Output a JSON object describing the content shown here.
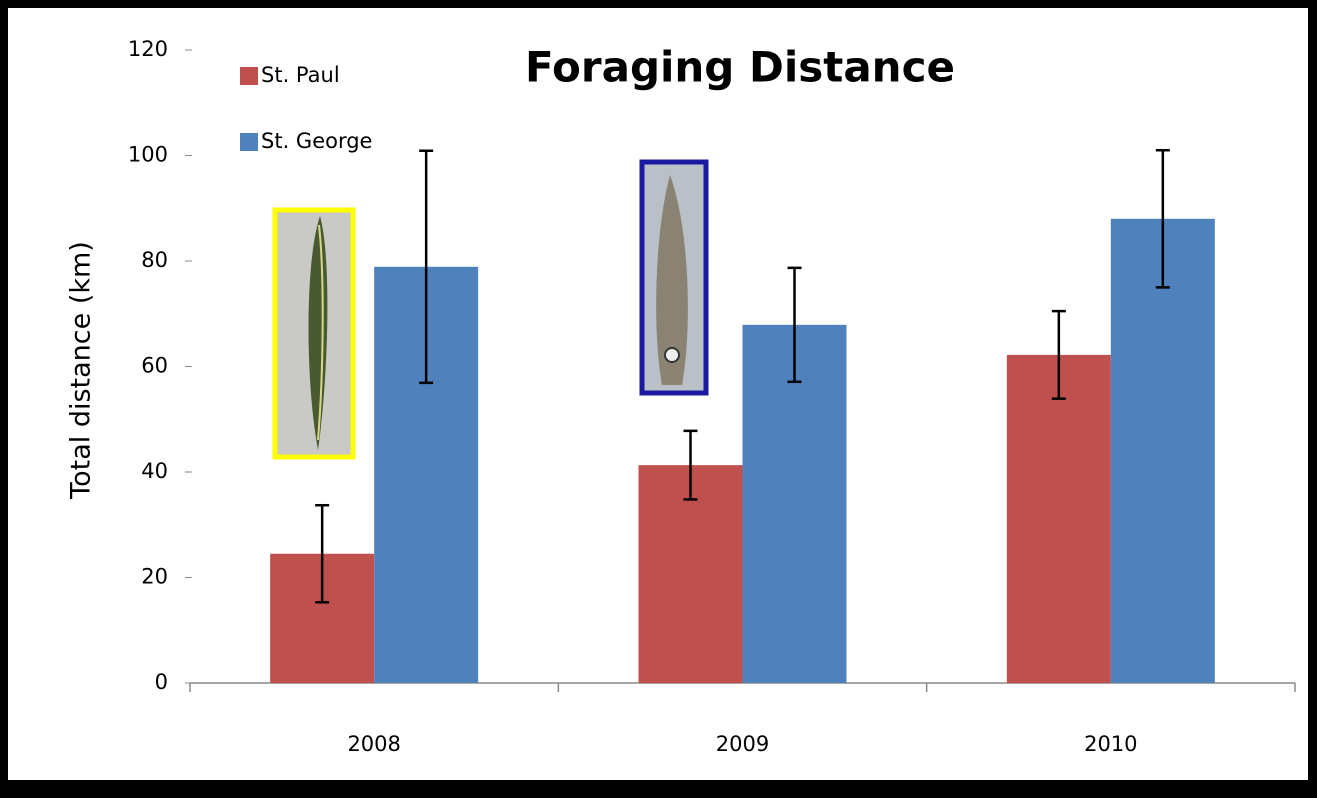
{
  "chart_data": {
    "type": "bar",
    "title": "Foraging Distance",
    "y_label": "Total distance (km)",
    "categories": [
      "2008",
      "2009",
      "2010"
    ],
    "series": [
      {
        "name": "St. Paul",
        "color": "#c0504d",
        "values": [
          24.5,
          41.3,
          62.2
        ],
        "errors": [
          9.2,
          6.5,
          8.3
        ]
      },
      {
        "name": "St. George",
        "color": "#4f81bd",
        "values": [
          78.9,
          67.9,
          88
        ],
        "errors": [
          22,
          10.8,
          13
        ]
      }
    ],
    "ylim": [
      0,
      120
    ],
    "yticks": [
      0,
      20,
      40,
      60,
      80,
      100,
      120
    ],
    "legend": "top-left"
  }
}
